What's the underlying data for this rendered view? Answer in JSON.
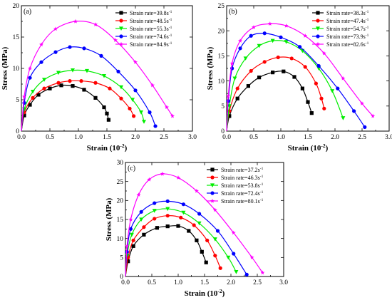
{
  "chart_data": [
    {
      "type": "line",
      "panel_label": "(a)",
      "xlabel": "Strain (10",
      "xlabel_exp": "-2",
      "xlabel_tail": ")",
      "ylabel": "Stress (MPa)",
      "xlim": [
        0,
        3.0
      ],
      "ylim": [
        0,
        20
      ],
      "xticks": [
        "0.0",
        "0.5",
        "1.0",
        "1.5",
        "2.0",
        "2.5",
        "3.0"
      ],
      "yticks": [
        "0",
        "5",
        "10",
        "15",
        "20"
      ],
      "legend_position": "top-right",
      "series": [
        {
          "name": "Strain rate=39.8s",
          "unit_exp": "-1",
          "color": "#000000",
          "marker": "square",
          "x": [
            0,
            0.05,
            0.15,
            0.3,
            0.5,
            0.7,
            0.9,
            1.1,
            1.3,
            1.45,
            1.5,
            1.53
          ],
          "y": [
            0,
            2.5,
            4.2,
            5.8,
            6.8,
            7.3,
            7.2,
            6.6,
            5.3,
            3.8,
            2.8,
            1.8
          ]
        },
        {
          "name": "Strain rate=48.5s",
          "unit_exp": "-1",
          "color": "#ff0000",
          "marker": "circle",
          "x": [
            0,
            0.05,
            0.2,
            0.4,
            0.65,
            0.85,
            1.05,
            1.3,
            1.55,
            1.75,
            1.9,
            1.97
          ],
          "y": [
            0,
            3.0,
            5.3,
            6.8,
            7.7,
            8.0,
            8.0,
            7.7,
            6.8,
            5.2,
            3.6,
            2.4
          ]
        },
        {
          "name": "Strain rate=55.3s",
          "unit_exp": "-1",
          "color": "#00ee00",
          "marker": "triangle-down",
          "x": [
            0,
            0.05,
            0.2,
            0.4,
            0.65,
            0.9,
            1.15,
            1.45,
            1.75,
            1.95,
            2.1,
            2.15
          ],
          "y": [
            0,
            3.5,
            6.3,
            8.2,
            9.3,
            9.7,
            9.6,
            8.8,
            7.0,
            5.0,
            3.0,
            1.5
          ]
        },
        {
          "name": "Strain rate=74.6s",
          "unit_exp": "-1",
          "color": "#0000ff",
          "marker": "circle",
          "x": [
            0,
            0.05,
            0.15,
            0.35,
            0.6,
            0.85,
            1.1,
            1.4,
            1.7,
            2.0,
            2.25,
            2.35
          ],
          "y": [
            0,
            4.5,
            8.5,
            11.0,
            12.6,
            13.4,
            13.2,
            12.0,
            9.5,
            6.5,
            3.0,
            0.8
          ]
        },
        {
          "name": "Strain rate=84.9s",
          "unit_exp": "-1",
          "color": "#ff00ff",
          "marker": "star",
          "x": [
            0,
            0.05,
            0.15,
            0.35,
            0.6,
            0.95,
            1.3,
            1.65,
            2.0,
            2.3,
            2.55,
            2.65
          ],
          "y": [
            0,
            5.5,
            10.0,
            13.8,
            16.3,
            17.5,
            17.0,
            14.5,
            11.0,
            7.3,
            3.8,
            2.4
          ]
        }
      ]
    },
    {
      "type": "line",
      "panel_label": "(b)",
      "xlabel": "Strain (10",
      "xlabel_exp": "-2",
      "xlabel_tail": ")",
      "ylabel": "Stress (MPa)",
      "xlim": [
        0,
        3.0
      ],
      "ylim": [
        0,
        25
      ],
      "xticks": [
        "0.0",
        "0.5",
        "1.0",
        "1.5",
        "2.0",
        "2.5",
        "3.0"
      ],
      "yticks": [
        "0",
        "5",
        "10",
        "15",
        "20",
        "25"
      ],
      "legend_position": "top-right",
      "series": [
        {
          "name": "Strain rate=38.3s",
          "unit_exp": "-1",
          "color": "#000000",
          "marker": "square",
          "x": [
            0,
            0.05,
            0.2,
            0.4,
            0.6,
            0.85,
            1.05,
            1.25,
            1.4,
            1.5,
            1.57
          ],
          "y": [
            0,
            3.0,
            6.5,
            9.0,
            10.7,
            11.7,
            11.9,
            10.8,
            8.5,
            5.8,
            3.6
          ]
        },
        {
          "name": "Strain rate=47.4s",
          "unit_exp": "-1",
          "color": "#ff0000",
          "marker": "circle",
          "x": [
            0,
            0.05,
            0.2,
            0.45,
            0.7,
            0.95,
            1.2,
            1.45,
            1.65,
            1.75,
            1.8
          ],
          "y": [
            0,
            4.0,
            8.5,
            12.0,
            13.8,
            14.7,
            14.5,
            12.8,
            9.5,
            6.5,
            4.5
          ]
        },
        {
          "name": "Strain rate=54.7s",
          "unit_exp": "-1",
          "color": "#00ee00",
          "marker": "triangle-down",
          "x": [
            0,
            0.05,
            0.15,
            0.35,
            0.6,
            0.85,
            1.1,
            1.4,
            1.7,
            1.95,
            2.15
          ],
          "y": [
            0,
            5.0,
            10.5,
            14.5,
            17.0,
            18.0,
            17.8,
            16.0,
            12.5,
            8.0,
            2.6
          ]
        },
        {
          "name": "Strain rate=73.9s",
          "unit_exp": "-1",
          "color": "#0000ff",
          "marker": "circle",
          "x": [
            0,
            0.03,
            0.1,
            0.25,
            0.45,
            0.7,
            1.0,
            1.35,
            1.7,
            2.05,
            2.35,
            2.55
          ],
          "y": [
            0,
            6.0,
            12.5,
            16.5,
            19.0,
            19.5,
            18.7,
            16.8,
            13.0,
            8.5,
            4.0,
            0.8
          ]
        },
        {
          "name": "Strain rate=82.6s",
          "unit_exp": "-1",
          "color": "#ff00ff",
          "marker": "star",
          "x": [
            0,
            0.03,
            0.1,
            0.25,
            0.5,
            0.8,
            1.1,
            1.45,
            1.8,
            2.15,
            2.5,
            2.7
          ],
          "y": [
            0,
            7.0,
            13.5,
            18.0,
            20.7,
            21.4,
            21.0,
            19.0,
            15.5,
            10.5,
            5.5,
            3.0
          ]
        }
      ]
    },
    {
      "type": "line",
      "panel_label": "(c)",
      "xlabel": "Strain (10",
      "xlabel_exp": "-2",
      "xlabel_tail": ")",
      "ylabel": "Stress (MPa)",
      "xlim": [
        0,
        3.0
      ],
      "ylim": [
        0,
        30
      ],
      "xticks": [
        "0.0",
        "0.5",
        "1.0",
        "1.5",
        "2.0",
        "2.5",
        "3.0"
      ],
      "yticks": [
        "0",
        "5",
        "10",
        "15",
        "20",
        "25",
        "30"
      ],
      "legend_position": "top-right",
      "series": [
        {
          "name": "Strain rate=37.2s",
          "unit_exp": "-1",
          "color": "#000000",
          "marker": "square",
          "x": [
            0,
            0.05,
            0.15,
            0.35,
            0.6,
            0.8,
            1.0,
            1.2,
            1.35,
            1.45,
            1.53
          ],
          "y": [
            0,
            4.0,
            8.0,
            11.0,
            12.8,
            13.2,
            13.3,
            12.0,
            9.5,
            6.5,
            3.7
          ]
        },
        {
          "name": "Strain rate=46.3s",
          "unit_exp": "-1",
          "color": "#ff0000",
          "marker": "circle",
          "x": [
            0,
            0.05,
            0.15,
            0.35,
            0.55,
            0.8,
            1.05,
            1.3,
            1.55,
            1.7,
            1.8
          ],
          "y": [
            0,
            5.0,
            9.5,
            13.0,
            15.2,
            16.0,
            15.5,
            13.5,
            9.5,
            5.5,
            2.2
          ]
        },
        {
          "name": "Strain rate=53.8s",
          "unit_exp": "-1",
          "color": "#00ee00",
          "marker": "triangle-down",
          "x": [
            0,
            0.03,
            0.12,
            0.3,
            0.55,
            0.8,
            1.1,
            1.4,
            1.7,
            1.95,
            2.1
          ],
          "y": [
            0,
            5.5,
            11.0,
            15.0,
            17.3,
            17.8,
            16.8,
            14.0,
            9.8,
            5.0,
            1.2
          ]
        },
        {
          "name": "Strain rate=72.4s",
          "unit_exp": "-1",
          "color": "#0000ff",
          "marker": "circle",
          "x": [
            0,
            0.03,
            0.1,
            0.3,
            0.55,
            0.8,
            1.1,
            1.4,
            1.75,
            2.05,
            2.3
          ],
          "y": [
            0,
            6.5,
            12.5,
            17.0,
            19.3,
            19.8,
            19.0,
            16.5,
            12.0,
            6.0,
            0.5
          ]
        },
        {
          "name": "Strain rate=80.1s",
          "unit_exp": "-1",
          "color": "#ff00ff",
          "marker": "star",
          "x": [
            0,
            0.03,
            0.1,
            0.25,
            0.45,
            0.7,
            1.0,
            1.35,
            1.7,
            2.05,
            2.4,
            2.6
          ],
          "y": [
            0,
            8.0,
            15.0,
            21.5,
            25.5,
            27.0,
            26.0,
            22.5,
            17.5,
            11.5,
            5.0,
            1.0
          ]
        }
      ]
    }
  ]
}
